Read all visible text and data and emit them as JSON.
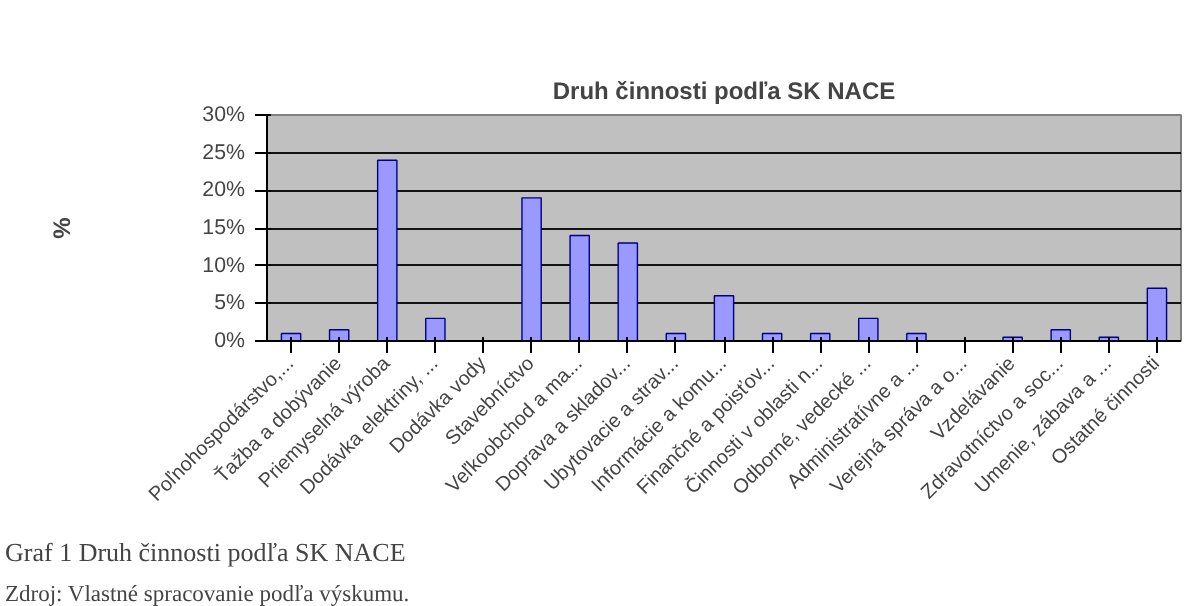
{
  "chart_data": {
    "type": "bar",
    "title": "Druh činnosti podľa SK NACE",
    "ylabel": "%",
    "categories": [
      "Poľnohospodárstvo,...",
      "Ťažba a dobývanie",
      "Priemyselná výroba",
      "Dodávka elektriny, ...",
      "Dodávka vody",
      "Stavebníctvo",
      "Veľkoobchod a ma...",
      "Doprava a skladov...",
      "Ubytovacie a strav...",
      "Informácie a komu...",
      "Finančné a poisťov...",
      "Činnosti v oblasti n...",
      "Odborné, vedecké ...",
      "Administratívne a ...",
      "Verejná správa a o...",
      "Vzdelávanie",
      "Zdravotníctvo a soc...",
      "Umenie, zábava a ...",
      "Ostatné činnosti"
    ],
    "values": [
      1,
      1.5,
      24,
      3,
      0,
      19,
      14,
      13,
      1,
      6,
      1,
      1,
      3,
      1,
      0,
      0.5,
      1.5,
      0.5,
      7
    ],
    "color": "#9999ff",
    "ylim": [
      0,
      30
    ],
    "yticks": [
      {
        "value": 0,
        "label": "0%"
      },
      {
        "value": 5,
        "label": "5%"
      },
      {
        "value": 10,
        "label": "10%"
      },
      {
        "value": 15,
        "label": "15%"
      },
      {
        "value": 20,
        "label": "20%"
      },
      {
        "value": 25,
        "label": "25%"
      },
      {
        "value": 30,
        "label": "30%"
      }
    ],
    "grid": "y",
    "annotations": [
      "Graf 1 Druh činnosti podľa SK NACE",
      "Zdroj: Vlastné spracovanie podľa výskumu."
    ]
  }
}
